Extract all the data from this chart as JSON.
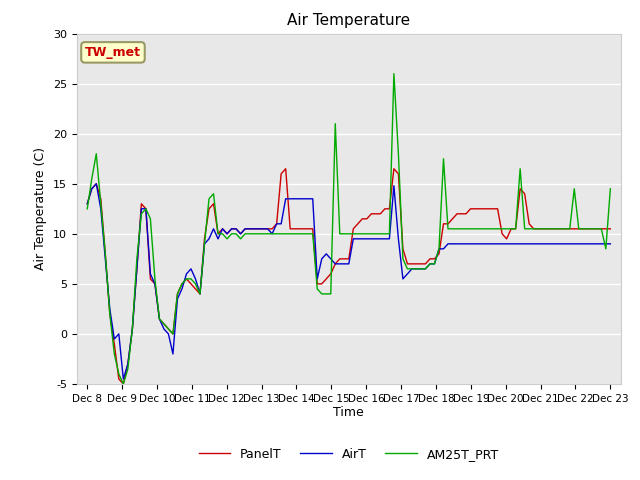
{
  "title": "Air Temperature",
  "ylabel": "Air Temperature (C)",
  "xlabel": "Time",
  "ylim": [
    -5,
    30
  ],
  "annotation_text": "TW_met",
  "annotation_color": "#cc0000",
  "annotation_bg": "#ffffcc",
  "annotation_border": "#999966",
  "background_color": "#e8e8e8",
  "grid_color": "#ffffff",
  "legend_entries": [
    "PanelT",
    "AirT",
    "AM25T_PRT"
  ],
  "line_colors": [
    "#cc0000",
    "#0000cc",
    "#00aa00"
  ],
  "xtick_labels": [
    "Dec 8",
    "Dec 9",
    "Dec 10",
    "Dec 11",
    "Dec 12",
    "Dec 13",
    "Dec 14",
    "Dec 15",
    "Dec 16",
    "Dec 17",
    "Dec 18",
    "Dec 19",
    "Dec 20",
    "Dec 21",
    "Dec 22",
    "Dec 23"
  ],
  "xtick_positions": [
    0,
    1,
    2,
    3,
    4,
    5,
    6,
    7,
    8,
    9,
    10,
    11,
    12,
    13,
    14,
    15
  ],
  "ytick_positions": [
    -5,
    0,
    5,
    10,
    15,
    20,
    25,
    30
  ],
  "PanelT": [
    13.0,
    14.5,
    15.0,
    13.5,
    8.0,
    2.0,
    -1.0,
    -4.5,
    -5.0,
    -3.0,
    0.5,
    6.5,
    13.0,
    12.5,
    5.5,
    5.0,
    1.5,
    1.0,
    0.5,
    0.0,
    4.0,
    5.0,
    5.5,
    5.0,
    4.5,
    4.0,
    9.5,
    12.5,
    13.0,
    10.0,
    10.5,
    10.0,
    10.5,
    10.5,
    10.0,
    10.5,
    10.5,
    10.5,
    10.5,
    10.5,
    10.5,
    10.5,
    11.0,
    16.0,
    16.5,
    10.5,
    10.5,
    10.5,
    10.5,
    10.5,
    10.5,
    5.0,
    5.0,
    5.5,
    6.0,
    7.0,
    7.5,
    7.5,
    7.5,
    10.5,
    11.0,
    11.5,
    11.5,
    12.0,
    12.0,
    12.0,
    12.5,
    12.5,
    16.5,
    16.0,
    8.5,
    7.0,
    7.0,
    7.0,
    7.0,
    7.0,
    7.5,
    7.5,
    8.0,
    11.0,
    11.0,
    11.5,
    12.0,
    12.0,
    12.0,
    12.5,
    12.5,
    12.5,
    12.5,
    12.5,
    12.5,
    12.5,
    10.0,
    9.5,
    10.5,
    10.5,
    14.5,
    14.0,
    11.0,
    10.5,
    10.5,
    10.5,
    10.5,
    10.5,
    10.5,
    10.5,
    10.5,
    10.5,
    10.5,
    10.5,
    10.5,
    10.5,
    10.5,
    10.5,
    10.5,
    10.5,
    10.5
  ],
  "AirT": [
    13.0,
    14.5,
    15.0,
    12.5,
    7.5,
    2.5,
    -0.5,
    0.0,
    -4.5,
    -3.0,
    0.5,
    6.5,
    12.5,
    12.5,
    6.0,
    5.0,
    1.5,
    0.5,
    0.0,
    -2.0,
    3.5,
    4.5,
    6.0,
    6.5,
    5.5,
    4.0,
    9.0,
    9.5,
    10.5,
    9.5,
    10.5,
    10.0,
    10.5,
    10.5,
    10.0,
    10.5,
    10.5,
    10.5,
    10.5,
    10.5,
    10.5,
    10.0,
    11.0,
    11.0,
    13.5,
    13.5,
    13.5,
    13.5,
    13.5,
    13.5,
    13.5,
    5.5,
    7.5,
    8.0,
    7.5,
    7.0,
    7.0,
    7.0,
    7.0,
    9.5,
    9.5,
    9.5,
    9.5,
    9.5,
    9.5,
    9.5,
    9.5,
    9.5,
    14.8,
    9.5,
    5.5,
    6.0,
    6.5,
    6.5,
    6.5,
    6.5,
    7.0,
    7.0,
    8.5,
    8.5,
    9.0,
    9.0,
    9.0,
    9.0,
    9.0,
    9.0,
    9.0,
    9.0,
    9.0,
    9.0,
    9.0,
    9.0,
    9.0,
    9.0,
    9.0,
    9.0,
    9.0,
    9.0,
    9.0,
    9.0,
    9.0,
    9.0,
    9.0,
    9.0,
    9.0,
    9.0,
    9.0,
    9.0,
    9.0,
    9.0,
    9.0,
    9.0,
    9.0,
    9.0,
    9.0,
    9.0,
    9.0
  ],
  "AM25T_PRT": [
    12.5,
    15.5,
    18.0,
    13.0,
    8.0,
    2.0,
    -2.0,
    -4.0,
    -5.0,
    -3.5,
    0.5,
    7.5,
    12.0,
    12.5,
    11.5,
    5.5,
    1.5,
    1.0,
    0.5,
    0.0,
    4.0,
    5.0,
    5.5,
    5.5,
    5.0,
    4.0,
    9.0,
    13.5,
    14.0,
    10.0,
    10.0,
    9.5,
    10.0,
    10.0,
    9.5,
    10.0,
    10.0,
    10.0,
    10.0,
    10.0,
    10.0,
    10.0,
    10.0,
    10.0,
    10.0,
    10.0,
    10.0,
    10.0,
    10.0,
    10.0,
    10.0,
    4.5,
    4.0,
    4.0,
    4.0,
    21.0,
    10.0,
    10.0,
    10.0,
    10.0,
    10.0,
    10.0,
    10.0,
    10.0,
    10.0,
    10.0,
    10.0,
    10.0,
    26.0,
    18.0,
    7.5,
    6.5,
    6.5,
    6.5,
    6.5,
    6.5,
    7.0,
    7.0,
    8.5,
    17.5,
    10.5,
    10.5,
    10.5,
    10.5,
    10.5,
    10.5,
    10.5,
    10.5,
    10.5,
    10.5,
    10.5,
    10.5,
    10.5,
    10.5,
    10.5,
    10.5,
    16.5,
    10.5,
    10.5,
    10.5,
    10.5,
    10.5,
    10.5,
    10.5,
    10.5,
    10.5,
    10.5,
    10.5,
    14.5,
    10.5,
    10.5,
    10.5,
    10.5,
    10.5,
    10.5,
    8.5,
    14.5
  ]
}
